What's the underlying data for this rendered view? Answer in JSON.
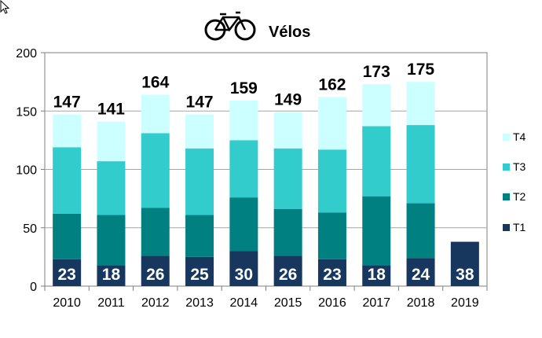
{
  "chart_data": {
    "type": "bar",
    "stacked": true,
    "title": "Vélos",
    "title_icon": "bicycle-icon",
    "categories": [
      "2010",
      "2011",
      "2012",
      "2013",
      "2014",
      "2015",
      "2016",
      "2017",
      "2018",
      "2019"
    ],
    "series": [
      {
        "name": "T1",
        "color": "#17375e",
        "values": [
          23,
          18,
          26,
          25,
          30,
          26,
          23,
          18,
          24,
          38
        ]
      },
      {
        "name": "T2",
        "color": "#008080",
        "values": [
          39,
          43,
          41,
          36,
          46,
          40,
          40,
          59,
          47,
          null
        ]
      },
      {
        "name": "T3",
        "color": "#33cccc",
        "values": [
          57,
          46,
          64,
          57,
          49,
          52,
          54,
          60,
          67,
          null
        ]
      },
      {
        "name": "T4",
        "color": "#ccffff",
        "values": [
          28,
          34,
          33,
          29,
          34,
          31,
          45,
          36,
          37,
          null
        ]
      }
    ],
    "totals": [
      147,
      141,
      164,
      147,
      159,
      149,
      162,
      173,
      175,
      null
    ],
    "ylim": [
      0,
      200
    ],
    "yticks": [
      0,
      50,
      100,
      150,
      200
    ],
    "grid": true,
    "legend_position": "right",
    "legend_order": [
      "T4",
      "T3",
      "T2",
      "T1"
    ],
    "xlabel": "",
    "ylabel": ""
  }
}
